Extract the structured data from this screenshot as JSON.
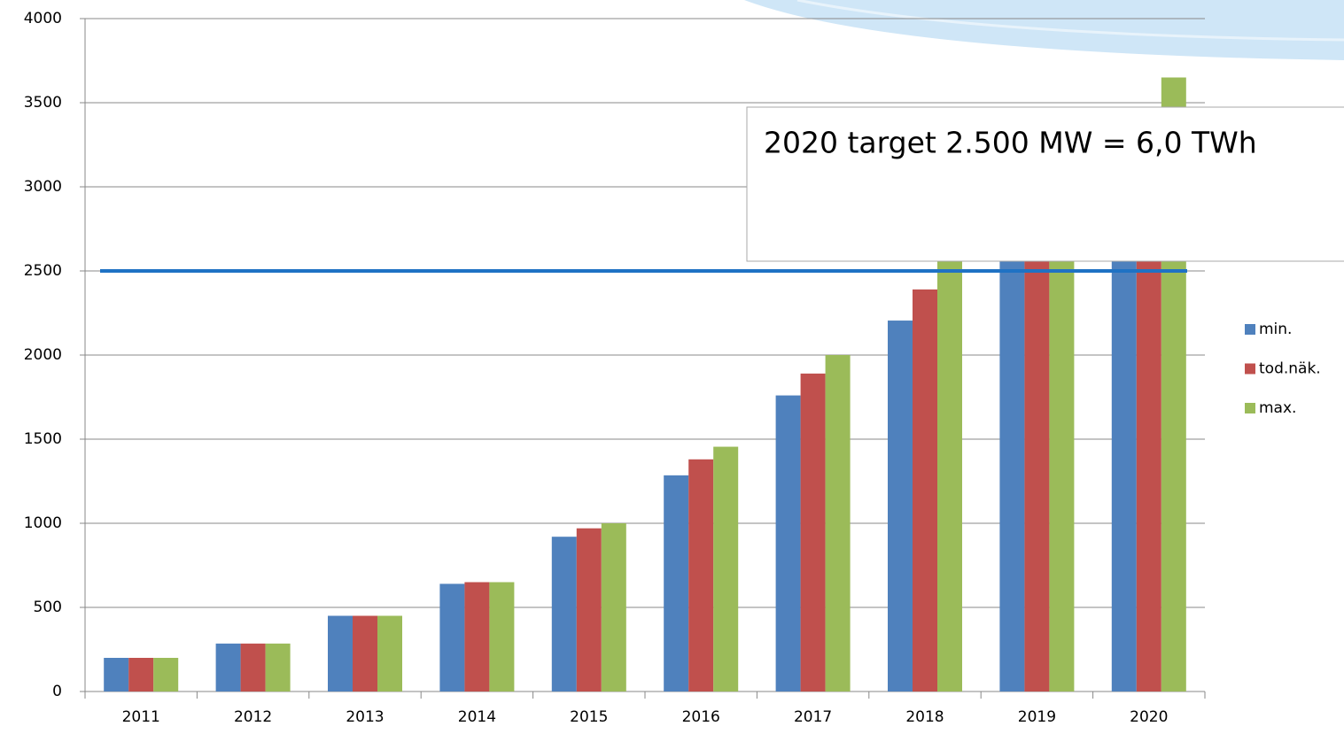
{
  "chart_data": {
    "type": "bar",
    "categories": [
      "2011",
      "2012",
      "2013",
      "2014",
      "2015",
      "2016",
      "2017",
      "2018",
      "2019",
      "2020"
    ],
    "series": [
      {
        "name": "min.",
        "color": "#4f81bd",
        "values": [
          200,
          285,
          450,
          640,
          920,
          1285,
          1760,
          2205,
          2650,
          3100
        ]
      },
      {
        "name": "tod.näk.",
        "color": "#c0504d",
        "values": [
          200,
          285,
          450,
          650,
          970,
          1380,
          1890,
          2390,
          2850,
          3350
        ]
      },
      {
        "name": "max.",
        "color": "#9bbb59",
        "values": [
          200,
          285,
          450,
          650,
          1000,
          1455,
          2000,
          2600,
          3000,
          3650
        ]
      }
    ],
    "target_line": {
      "value": 2500,
      "color": "#1f72c4"
    },
    "annotation": "2020 target 2.500 MW = 6,0 TWh",
    "ylim": [
      0,
      4000
    ],
    "yticks": [
      0,
      500,
      1000,
      1500,
      2000,
      2500,
      3000,
      3500,
      4000
    ],
    "grid": true,
    "legend": "right"
  }
}
